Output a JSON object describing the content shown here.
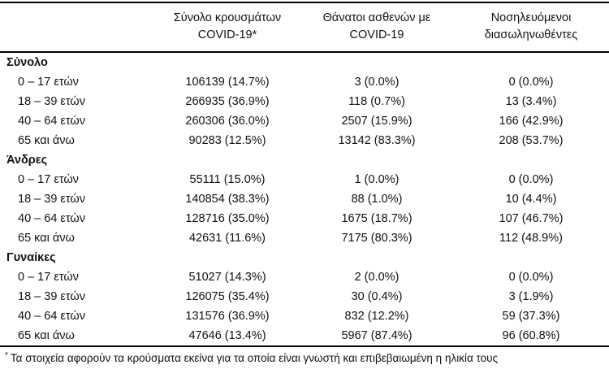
{
  "page": {
    "background_color": "#ffffff",
    "text_color": "#111111",
    "rule_color": "#000000"
  },
  "table": {
    "column_headers": [
      {
        "line1": "Σύνολο κρουσμάτων",
        "line2": "COVID-19*"
      },
      {
        "line1": "Θάνατοι ασθενών με",
        "line2": "COVID-19"
      },
      {
        "line1": "Νοσηλευόμενοι",
        "line2": "διασωληνωθέντες"
      }
    ],
    "groups": [
      {
        "label": "Σύνολο",
        "rows": [
          {
            "label": "0 – 17 ετών",
            "cases": "106139 (14.7%)",
            "deaths": "3 (0.0%)",
            "intubated": "0 (0.0%)"
          },
          {
            "label": "18 – 39 ετών",
            "cases": "266935 (36.9%)",
            "deaths": "118 (0.7%)",
            "intubated": "13 (3.4%)"
          },
          {
            "label": "40 – 64 ετών",
            "cases": "260306 (36.0%)",
            "deaths": "2507 (15.9%)",
            "intubated": "166 (42.9%)"
          },
          {
            "label": "65 και άνω",
            "cases": "90283 (12.5%)",
            "deaths": "13142 (83.3%)",
            "intubated": "208 (53.7%)"
          }
        ]
      },
      {
        "label": "Άνδρες",
        "rows": [
          {
            "label": "0 – 17 ετών",
            "cases": "55111 (15.0%)",
            "deaths": "1 (0.0%)",
            "intubated": "0 (0.0%)"
          },
          {
            "label": "18 – 39 ετών",
            "cases": "140854 (38.3%)",
            "deaths": "88 (1.0%)",
            "intubated": "10 (4.4%)"
          },
          {
            "label": "40 – 64 ετών",
            "cases": "128716 (35.0%)",
            "deaths": "1675 (18.7%)",
            "intubated": "107 (46.7%)"
          },
          {
            "label": "65 και άνω",
            "cases": "42631 (11.6%)",
            "deaths": "7175 (80.3%)",
            "intubated": "112 (48.9%)"
          }
        ]
      },
      {
        "label": "Γυναίκες",
        "rows": [
          {
            "label": "0 – 17 ετών",
            "cases": "51027 (14.3%)",
            "deaths": "2 (0.0%)",
            "intubated": "0 (0.0%)"
          },
          {
            "label": "18 – 39 ετών",
            "cases": "126075 (35.4%)",
            "deaths": "30 (0.4%)",
            "intubated": "3 (1.9%)"
          },
          {
            "label": "40 – 64 ετών",
            "cases": "131576 (36.9%)",
            "deaths": "832 (12.2%)",
            "intubated": "59 (37.3%)"
          },
          {
            "label": "65 και άνω",
            "cases": "47646 (13.4%)",
            "deaths": "5967 (87.4%)",
            "intubated": "96 (60.8%)"
          }
        ]
      }
    ]
  },
  "footnote": {
    "marker": "*",
    "text": "Τα στοιχεία αφορούν τα κρούσματα εκείνα για τα οποία είναι γνωστή και επιβεβαιωμένη η ηλικία τους"
  }
}
